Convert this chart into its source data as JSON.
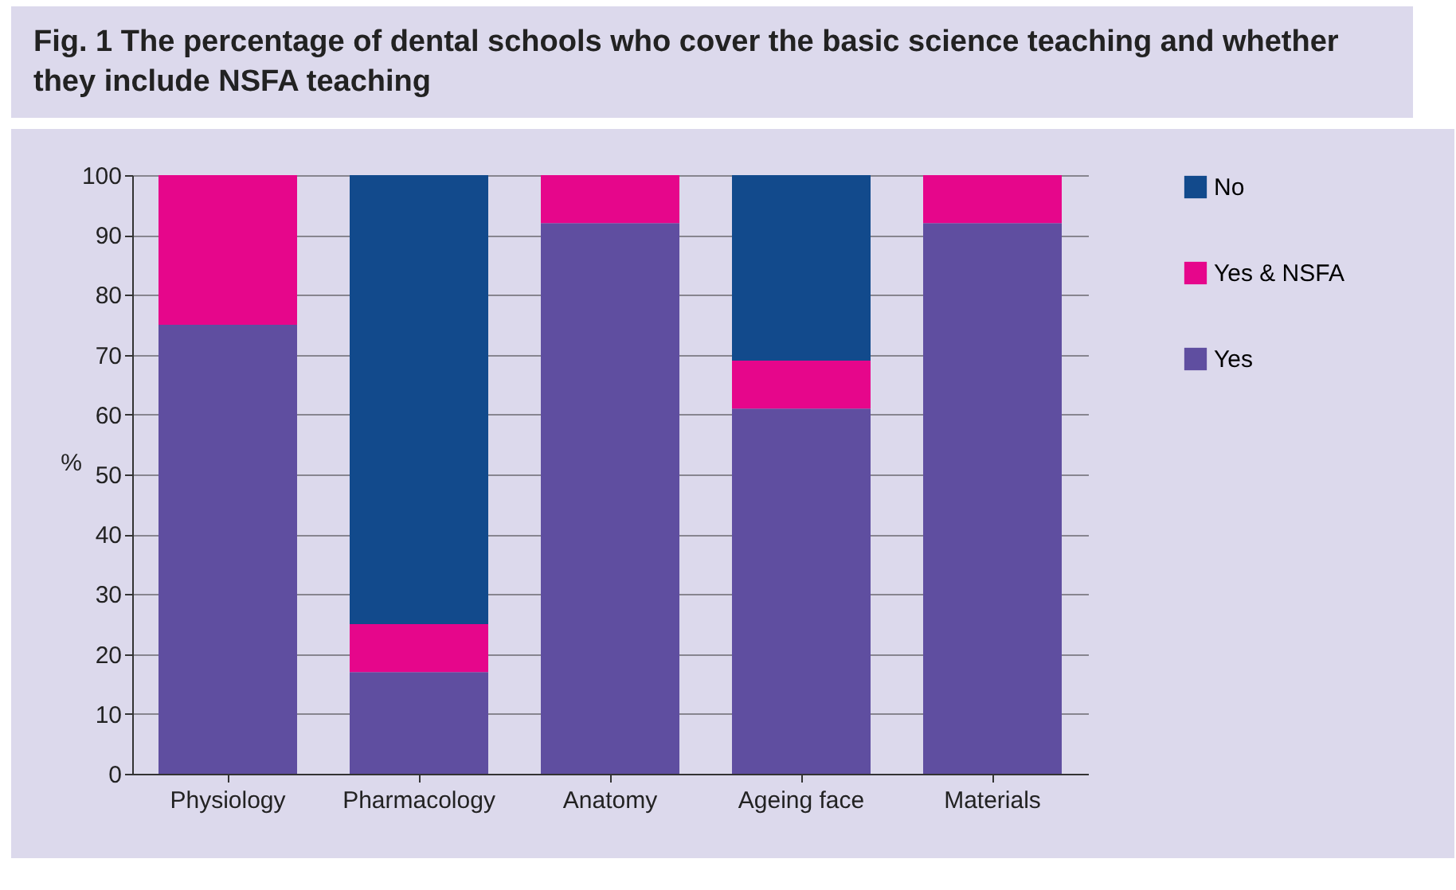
{
  "chart_data": {
    "type": "bar",
    "title": "Fig. 1  The percentage of dental schools who cover the basic science teaching and whether they include NSFA teaching",
    "ylabel": "%",
    "categories": [
      "Physiology",
      "Pharmacology",
      "Anatomy",
      "Ageing face",
      "Materials"
    ],
    "stacked": true,
    "series": [
      {
        "name": "Yes",
        "color": "#5f4ea0",
        "values": [
          75,
          17,
          92,
          61,
          92
        ]
      },
      {
        "name": "Yes & NSFA",
        "color": "#e6068b",
        "values": [
          25,
          8,
          8,
          8,
          8
        ]
      },
      {
        "name": "No",
        "color": "#124a8c",
        "values": [
          0,
          75,
          0,
          31,
          0
        ]
      }
    ],
    "ylim": [
      0,
      100
    ],
    "yticks": [
      0,
      10,
      20,
      30,
      40,
      50,
      60,
      70,
      80,
      90,
      100
    ],
    "grid": "y",
    "legend": "right"
  }
}
